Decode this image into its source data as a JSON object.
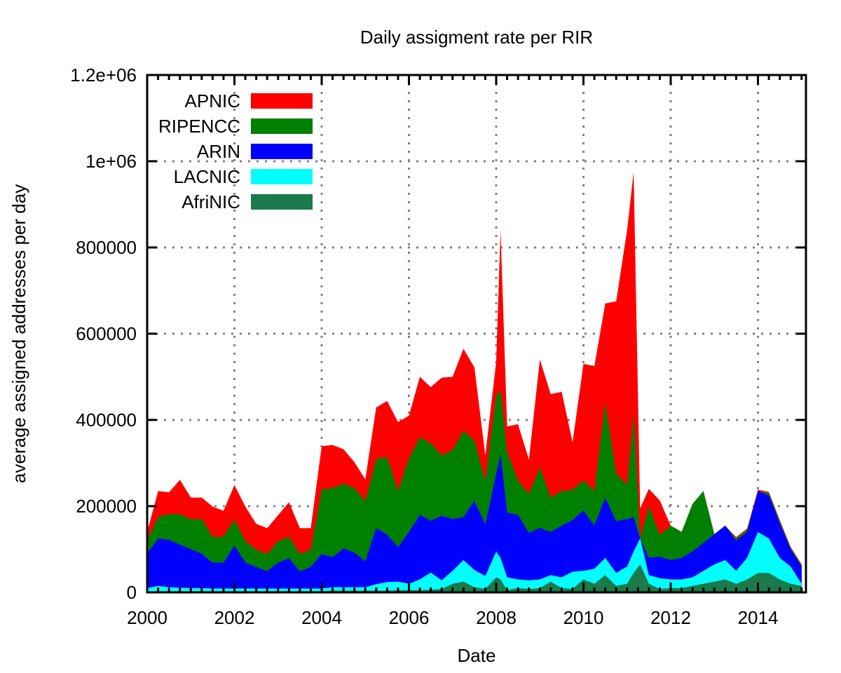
{
  "chart_data": {
    "type": "area",
    "stacked": true,
    "title": "Daily assigment rate per RIR",
    "xlabel": "Date",
    "ylabel": "average assigned addresses per day",
    "xlim": [
      2000,
      2015.1
    ],
    "ylim": [
      0,
      1200000
    ],
    "grid": true,
    "legend_position": "top-left",
    "x_ticks": [
      2000,
      2002,
      2004,
      2006,
      2008,
      2010,
      2012,
      2014
    ],
    "x_tick_labels": [
      "2000",
      "2002",
      "2004",
      "2006",
      "2008",
      "2010",
      "2012",
      "2014"
    ],
    "y_ticks": [
      0,
      200000,
      400000,
      600000,
      800000,
      1000000,
      1200000
    ],
    "y_tick_labels": [
      "0",
      "200000",
      "400000",
      "600000",
      "800000",
      "1e+06",
      "1.2e+06"
    ],
    "x": [
      2000.0,
      2000.25,
      2000.5,
      2000.75,
      2001.0,
      2001.25,
      2001.5,
      2001.75,
      2002.0,
      2002.25,
      2002.5,
      2002.75,
      2003.0,
      2003.25,
      2003.5,
      2003.75,
      2004.0,
      2004.25,
      2004.5,
      2004.75,
      2005.0,
      2005.25,
      2005.5,
      2005.75,
      2006.0,
      2006.25,
      2006.5,
      2006.75,
      2007.0,
      2007.25,
      2007.5,
      2007.75,
      2008.0,
      2008.1,
      2008.25,
      2008.5,
      2008.75,
      2009.0,
      2009.25,
      2009.5,
      2009.75,
      2010.0,
      2010.25,
      2010.5,
      2010.75,
      2011.0,
      2011.15,
      2011.3,
      2011.5,
      2011.75,
      2012.0,
      2012.25,
      2012.5,
      2012.75,
      2013.0,
      2013.25,
      2013.5,
      2013.75,
      2014.0,
      2014.25,
      2014.5,
      2014.75,
      2015.0
    ],
    "series": [
      {
        "name": "AfriNIC",
        "color": "#1a7a4a",
        "values": [
          2000,
          3000,
          3000,
          3000,
          3000,
          3000,
          3000,
          3000,
          3000,
          3000,
          3000,
          3000,
          3000,
          3000,
          3000,
          3000,
          3000,
          4000,
          4000,
          4000,
          4000,
          4000,
          4000,
          5000,
          5000,
          5000,
          6000,
          8000,
          20000,
          25000,
          12000,
          8000,
          35000,
          30000,
          5000,
          10000,
          8000,
          10000,
          25000,
          10000,
          8000,
          30000,
          20000,
          40000,
          15000,
          20000,
          45000,
          65000,
          20000,
          8000,
          10000,
          10000,
          15000,
          20000,
          25000,
          30000,
          20000,
          30000,
          45000,
          45000,
          30000,
          20000,
          15000
        ]
      },
      {
        "name": "LACNIC",
        "color": "#00ffff",
        "values": [
          8000,
          12000,
          9000,
          8000,
          7000,
          7000,
          6000,
          6000,
          6000,
          6000,
          6000,
          6000,
          6000,
          6000,
          6000,
          6000,
          6000,
          8000,
          8000,
          8000,
          8000,
          15000,
          20000,
          20000,
          15000,
          25000,
          40000,
          20000,
          30000,
          50000,
          40000,
          30000,
          60000,
          50000,
          30000,
          20000,
          20000,
          20000,
          15000,
          25000,
          40000,
          20000,
          35000,
          40000,
          30000,
          40000,
          50000,
          60000,
          20000,
          25000,
          20000,
          20000,
          20000,
          30000,
          40000,
          45000,
          30000,
          50000,
          95000,
          80000,
          50000,
          40000,
          5000
        ]
      },
      {
        "name": "ARIN",
        "color": "#0000ff",
        "values": [
          80000,
          110000,
          110000,
          100000,
          90000,
          80000,
          60000,
          60000,
          100000,
          60000,
          50000,
          40000,
          60000,
          70000,
          40000,
          50000,
          80000,
          70000,
          90000,
          80000,
          60000,
          130000,
          110000,
          80000,
          120000,
          150000,
          120000,
          150000,
          120000,
          100000,
          160000,
          120000,
          180000,
          240000,
          150000,
          150000,
          110000,
          120000,
          100000,
          120000,
          120000,
          140000,
          100000,
          140000,
          120000,
          110000,
          80000,
          0,
          40000,
          50000,
          45000,
          50000,
          60000,
          65000,
          70000,
          80000,
          70000,
          60000,
          95000,
          100000,
          80000,
          40000,
          40000
        ]
      },
      {
        "name": "RIPENCC",
        "color": "#008000",
        "values": [
          30000,
          50000,
          60000,
          70000,
          70000,
          80000,
          60000,
          60000,
          60000,
          50000,
          40000,
          40000,
          50000,
          50000,
          40000,
          40000,
          150000,
          160000,
          150000,
          150000,
          140000,
          160000,
          180000,
          130000,
          170000,
          180000,
          180000,
          140000,
          160000,
          200000,
          140000,
          100000,
          180000,
          150000,
          140000,
          80000,
          90000,
          140000,
          80000,
          80000,
          70000,
          70000,
          80000,
          220000,
          110000,
          80000,
          240000,
          0,
          120000,
          50000,
          80000,
          60000,
          110000,
          120000,
          0,
          0,
          5000,
          5000,
          0,
          5000,
          5000,
          3000,
          3000
        ]
      },
      {
        "name": "APNIC",
        "color": "#ff0000",
        "values": [
          20000,
          60000,
          50000,
          80000,
          50000,
          50000,
          70000,
          60000,
          80000,
          80000,
          60000,
          60000,
          60000,
          80000,
          60000,
          50000,
          100000,
          100000,
          80000,
          60000,
          50000,
          120000,
          130000,
          160000,
          100000,
          140000,
          130000,
          180000,
          170000,
          190000,
          170000,
          60000,
          80000,
          370000,
          60000,
          130000,
          80000,
          250000,
          240000,
          230000,
          110000,
          270000,
          290000,
          230000,
          400000,
          590000,
          560000,
          70000,
          40000,
          80000,
          0,
          0,
          0,
          0,
          0,
          0,
          3000,
          3000,
          3000,
          3000,
          3000,
          2000,
          2000
        ]
      }
    ]
  }
}
